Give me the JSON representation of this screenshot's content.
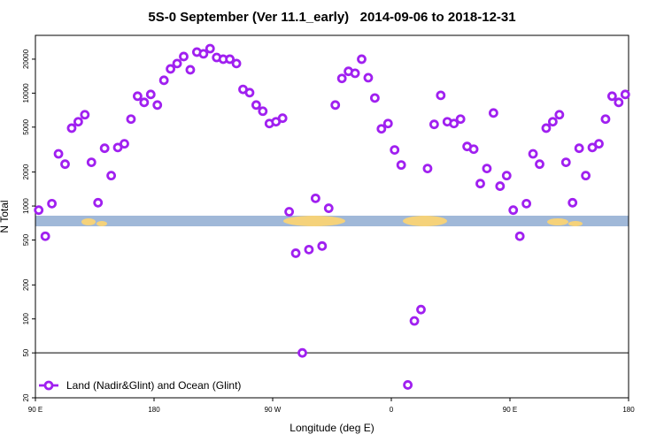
{
  "chart_data": {
    "type": "scatter",
    "title": "5S-0 September (Ver 11.1_early)   2014-09-06 to 2018-12-31",
    "x_label": "Longitude (deg E)",
    "y_label": "N Total",
    "xlim": [
      90,
      540
    ],
    "ylim": [
      20,
      32500
    ],
    "ylog": true,
    "xticks": [
      {
        "value": 90,
        "label": "90 E"
      },
      180,
      {
        "value": 270,
        "label": "90 W"
      },
      {
        "value": 360,
        "label": "0"
      },
      {
        "value": 450,
        "label": "90 E"
      },
      {
        "value": 540,
        "label": "180"
      }
    ],
    "yticks": [
      20,
      50,
      100,
      200,
      500,
      1000,
      2000,
      5000,
      10000,
      20000
    ],
    "hline": 50,
    "legend": "bottom-left",
    "series": [
      {
        "name": "Land (Nadir&Glint) and Ocean (Glint)",
        "color": "#a020f0",
        "x": [
          92.5,
          97.5,
          102.5,
          107.5,
          112.5,
          117.5,
          122.5,
          127.5,
          132.5,
          137.5,
          142.5,
          147.5,
          152.5,
          157.5,
          162.5,
          167.5,
          172.5,
          177.5,
          182.5,
          187.5,
          192.5,
          197.5,
          202.5,
          207.5,
          212.5,
          217.5,
          222.5,
          227.5,
          232.5,
          237.5,
          242.5,
          247.5,
          252.5,
          257.5,
          262.5,
          267.5,
          272.5,
          277.5,
          282.5,
          287.5,
          292.5,
          297.5,
          302.5,
          307.5,
          312.5,
          317.5,
          322.5,
          327.5,
          332.5,
          337.5,
          342.5,
          347.5,
          352.5,
          357.5,
          362.5,
          367.5,
          372.5,
          377.5,
          382.5,
          387.5,
          392.5,
          397.5,
          402.5,
          407.5,
          412.5,
          417.5,
          422.5,
          427.5,
          432.5,
          437.5,
          442.5,
          447.5,
          452.5,
          457.5,
          462.5,
          467.5,
          472.5,
          477.5,
          482.5,
          487.5,
          492.5,
          497.5,
          502.5,
          507.5,
          512.5,
          517.5,
          522.5,
          527.5,
          532.5,
          537.5
        ],
        "values": [
          920,
          540,
          1050,
          2900,
          2350,
          4900,
          5580,
          6440,
          2440,
          1070,
          3250,
          1860,
          3300,
          3560,
          5890,
          9400,
          8280,
          9740,
          7850,
          13000,
          16400,
          18300,
          21100,
          16100,
          23100,
          22300,
          24800,
          20700,
          20000,
          20000,
          18300,
          10800,
          10100,
          7850,
          6920,
          5380,
          5580,
          6000,
          890,
          382,
          50,
          411,
          1170,
          442,
          956,
          7850,
          13500,
          15600,
          15000,
          20000,
          13700,
          9060,
          4830,
          5380,
          3140,
          2310,
          26,
          96,
          121,
          2150,
          5290,
          9560,
          5580,
          5380,
          5890,
          3370,
          3190,
          1580,
          2150,
          6670,
          1500,
          1860,
          920,
          540,
          1050,
          2900,
          2350,
          4900,
          5580,
          6440,
          2440,
          1070,
          3250,
          1860,
          3300,
          3560,
          5890,
          9400,
          8280,
          9740
        ]
      }
    ]
  }
}
